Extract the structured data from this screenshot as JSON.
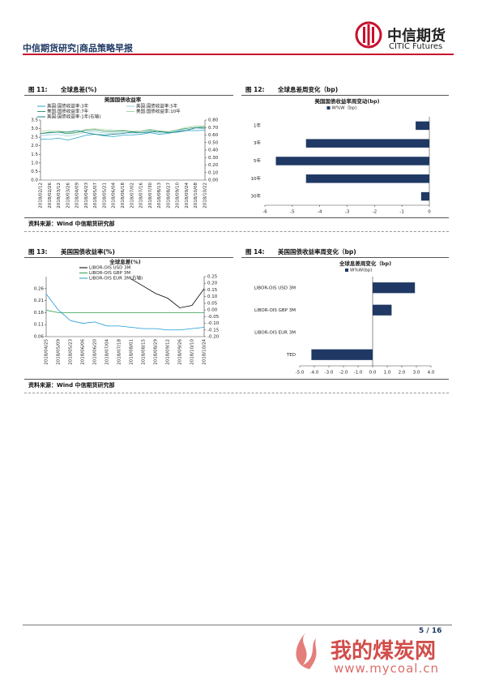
{
  "header": {
    "title": "中信期货研究|商品策略早报",
    "logo_cn": "中信期货",
    "logo_en": "CITIC Futures"
  },
  "figures": [
    {
      "label": "图 11:",
      "caption": "全球息差(%)"
    },
    {
      "label": "图 12:",
      "caption": "全球息差周变化（bp)"
    },
    {
      "label": "图 13:",
      "caption": "美国国债收益率(%)"
    },
    {
      "label": "图 14:",
      "caption": "美国国债收益率周变化（bp)"
    }
  ],
  "sources": [
    "资料来源：Wind  中信期货研究部",
    "资料来源：Wind  中信期货研究部"
  ],
  "footer": {
    "page": "5 / 16"
  },
  "watermark": {
    "name": "我的煤炭网",
    "url": "www.mycoal.cn"
  },
  "chart_data": [
    {
      "type": "line",
      "title": "美国国债收益率",
      "x": [
        "2018/02/12",
        "2018/02/26",
        "2018/03/12",
        "2018/03/26",
        "2018/04/09",
        "2018/04/23",
        "2018/05/07",
        "2018/05/21",
        "2018/06/04",
        "2018/06/18",
        "2018/07/02",
        "2018/07/16",
        "2018/07/30",
        "2018/08/13",
        "2018/08/27",
        "2018/09/10",
        "2018/09/24",
        "2018/10/08",
        "2018/10/22"
      ],
      "series": [
        {
          "name": "美国:国债收益率:3年",
          "color": "#2aa6c8",
          "values": [
            2.38,
            2.39,
            2.44,
            2.33,
            2.47,
            2.62,
            2.67,
            2.58,
            2.53,
            2.62,
            2.63,
            2.67,
            2.76,
            2.67,
            2.72,
            2.84,
            2.89,
            2.88,
            2.91
          ]
        },
        {
          "name": "美国:国债收益率:5年",
          "color": "#9ccfe0",
          "values": [
            2.58,
            2.64,
            2.66,
            2.56,
            2.66,
            2.8,
            2.83,
            2.74,
            2.73,
            2.77,
            2.74,
            2.76,
            2.85,
            2.75,
            2.76,
            2.88,
            2.95,
            2.98,
            3.02
          ]
        },
        {
          "name": "美国:国债收益率:7年",
          "color": "#3a9a6a",
          "values": [
            2.72,
            2.79,
            2.79,
            2.7,
            2.77,
            2.91,
            2.94,
            2.84,
            2.83,
            2.87,
            2.82,
            2.84,
            2.92,
            2.81,
            2.81,
            2.93,
            3.01,
            3.07,
            3.1
          ]
        },
        {
          "name": "美国:国债收益率:10年",
          "color": "#a8d5a0",
          "values": [
            2.86,
            2.88,
            2.87,
            2.78,
            2.8,
            2.96,
            2.99,
            2.93,
            2.9,
            2.92,
            2.85,
            2.86,
            2.96,
            2.87,
            2.83,
            2.94,
            3.08,
            3.16,
            3.17
          ]
        },
        {
          "name": "美国:国债收益率:1年(右轴)",
          "color": "#1b8585",
          "axis": "y2",
          "values": [
            0.62,
            0.63,
            0.64,
            0.64,
            0.66,
            0.63,
            0.61,
            0.6,
            0.61,
            0.62,
            0.64,
            0.63,
            0.64,
            0.65,
            0.63,
            0.64,
            0.66,
            0.7,
            0.69
          ]
        }
      ],
      "ylim": [
        0,
        3.5
      ],
      "yticks": [
        {
          "value": 0,
          "label": "0.0"
        },
        0.5,
        {
          "value": 1,
          "label": "1.0"
        },
        1.5,
        {
          "value": 2,
          "label": "2.0"
        },
        2.5,
        {
          "value": 3,
          "label": "3.0"
        },
        3.5
      ],
      "y2lim": [
        0,
        0.8
      ],
      "y2ticks": [
        {
          "value": 0,
          "label": "0.00"
        },
        {
          "value": 0.1,
          "label": "0.10"
        },
        {
          "value": 0.2,
          "label": "0.20"
        },
        {
          "value": 0.3,
          "label": "0.30"
        },
        {
          "value": 0.4,
          "label": "0.40"
        },
        {
          "value": 0.5,
          "label": "0.50"
        },
        {
          "value": 0.6,
          "label": "0.60"
        },
        {
          "value": 0.7,
          "label": "0.70"
        },
        {
          "value": 0.8,
          "label": "0.80"
        }
      ]
    },
    {
      "type": "hbar",
      "title": "美国国债收益率周变动(bp)",
      "categories": [
        "1年",
        "3年",
        "5年",
        "10年",
        "30年"
      ],
      "series": [
        {
          "name": "W%W（bp)",
          "color": "#1f3864",
          "values": [
            -0.5,
            -4.5,
            -5.6,
            -4.5,
            -0.3
          ]
        }
      ],
      "xlim": [
        -6,
        0
      ],
      "xticks": [
        -6,
        -5,
        -4,
        -3,
        -2,
        -1,
        0
      ]
    },
    {
      "type": "line",
      "title": "全球息差(%)",
      "x": [
        "2018/04/25",
        "2018/05/09",
        "2018/05/23",
        "2018/06/06",
        "2018/06/20",
        "2018/07/04",
        "2018/07/18",
        "2018/08/01",
        "2018/08/15",
        "2018/08/29",
        "2018/09/12",
        "2018/09/26",
        "2018/10/10",
        "2018/10/24"
      ],
      "series": [
        {
          "name": "LIBOR-OIS USD 3M",
          "color": "#000000",
          "values": [
            null,
            null,
            null,
            null,
            null,
            null,
            null,
            0.3,
            0.27,
            0.24,
            0.22,
            0.18,
            0.19,
            0.26
          ]
        },
        {
          "name": "LIBOR-OIS GBP 3M",
          "color": "#2e9e4f",
          "values": [
            0.17,
            0.16,
            0.16,
            0.16,
            0.16,
            0.16,
            0.16,
            0.16,
            0.16,
            0.16,
            0.16,
            0.16,
            0.16,
            0.16
          ]
        },
        {
          "name": "LIBOR-OIS EUR 3M(右轴)",
          "color": "#1a9ad6",
          "axis": "y2",
          "values": [
            0.12,
            0.0,
            -0.08,
            -0.1,
            -0.09,
            -0.12,
            -0.12,
            -0.13,
            -0.14,
            -0.14,
            -0.15,
            -0.15,
            -0.14,
            -0.13
          ]
        }
      ],
      "ylim": [
        0.06,
        0.31
      ],
      "yticks": [
        0.06,
        0.11,
        0.16,
        0.21,
        0.26
      ],
      "y2lim": [
        -0.2,
        0.25
      ],
      "y2ticks": [
        0.25,
        {
          "value": 0.2,
          "label": "0.20"
        },
        0.15,
        {
          "value": 0.1,
          "label": "0.10"
        },
        0.05,
        {
          "value": 0,
          "label": "0.00"
        },
        -0.05,
        {
          "value": -0.1,
          "label": "-0.10"
        },
        -0.15,
        {
          "value": -0.2,
          "label": "-0.20"
        }
      ]
    },
    {
      "type": "hbar",
      "title": "全球息差周变化（bp)",
      "categories": [
        "LIBOR-OIS USD 3M",
        "LIBOR-OIS GBP 3M",
        "LIBOR-OIS EUR 3M",
        "TED"
      ],
      "series": [
        {
          "name": "W%W(bp)",
          "color": "#1f3864",
          "values": [
            2.9,
            1.3,
            0,
            -4.2
          ]
        }
      ],
      "xlim": [
        -5,
        4
      ],
      "xticks": [
        {
          "value": -5,
          "label": "-5.0"
        },
        {
          "value": -4,
          "label": "-4.0"
        },
        {
          "value": -3,
          "label": "-3.0"
        },
        {
          "value": -2,
          "label": "-2.0"
        },
        {
          "value": -1,
          "label": "-1.0"
        },
        {
          "value": 0,
          "label": "0.0"
        },
        {
          "value": 1,
          "label": "1.0"
        },
        {
          "value": 2,
          "label": "2.0"
        },
        {
          "value": 3,
          "label": "3.0"
        },
        {
          "value": 4,
          "label": "4.0"
        }
      ]
    }
  ]
}
